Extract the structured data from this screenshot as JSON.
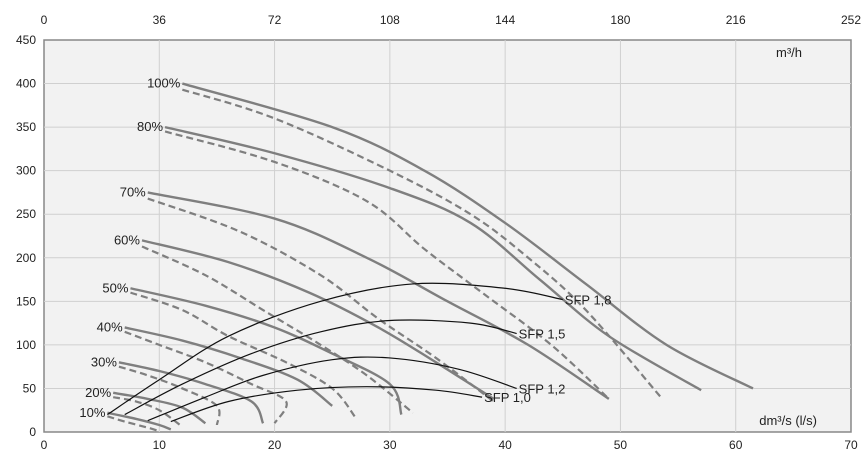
{
  "chart_data": {
    "type": "line",
    "title": "",
    "xlabel": "dm³/s (l/s)",
    "x2label": "m³/h",
    "ylabel": "",
    "xlim": [
      0,
      70
    ],
    "x2lim": [
      0,
      252
    ],
    "ylim": [
      0,
      450
    ],
    "x_ticks": [
      0,
      10,
      20,
      30,
      40,
      50,
      60,
      70
    ],
    "x2_ticks": [
      0,
      36,
      72,
      108,
      144,
      180,
      216,
      252
    ],
    "y_ticks": [
      0,
      50,
      100,
      150,
      200,
      250,
      300,
      350,
      400,
      450
    ],
    "grid": true,
    "speed_curves": [
      {
        "name": "100%",
        "solid": [
          [
            12,
            400
          ],
          [
            25,
            350
          ],
          [
            33,
            300
          ],
          [
            40,
            240
          ],
          [
            47,
            170
          ],
          [
            54,
            100
          ],
          [
            61.5,
            50
          ]
        ],
        "dashed": [
          [
            12,
            393
          ],
          [
            20,
            360
          ],
          [
            30,
            300
          ],
          [
            37,
            250
          ],
          [
            42,
            200
          ],
          [
            47,
            140
          ],
          [
            53.5,
            40
          ]
        ]
      },
      {
        "name": "80%",
        "solid": [
          [
            10.5,
            350
          ],
          [
            20,
            320
          ],
          [
            30,
            280
          ],
          [
            37,
            240
          ],
          [
            43,
            175
          ],
          [
            49,
            110
          ],
          [
            57,
            48
          ]
        ],
        "dashed": [
          [
            10.5,
            345
          ],
          [
            20,
            310
          ],
          [
            28,
            265
          ],
          [
            33,
            210
          ],
          [
            38,
            160
          ],
          [
            44,
            100
          ],
          [
            49,
            38
          ]
        ]
      },
      {
        "name": "70%",
        "solid": [
          [
            9,
            275
          ],
          [
            20,
            245
          ],
          [
            28,
            200
          ],
          [
            35,
            150
          ],
          [
            42,
            100
          ],
          [
            49,
            38
          ]
        ],
        "dashed": [
          [
            9,
            268
          ],
          [
            17,
            230
          ],
          [
            24,
            180
          ],
          [
            29,
            130
          ],
          [
            34,
            85
          ],
          [
            39,
            35
          ]
        ]
      },
      {
        "name": "60%",
        "solid": [
          [
            8.5,
            220
          ],
          [
            16,
            195
          ],
          [
            23,
            160
          ],
          [
            29,
            120
          ],
          [
            34,
            80
          ],
          [
            39,
            38
          ]
        ],
        "dashed": [
          [
            8.5,
            213
          ],
          [
            14,
            180
          ],
          [
            19,
            140
          ],
          [
            24,
            100
          ],
          [
            28,
            65
          ],
          [
            32,
            22
          ]
        ]
      },
      {
        "name": "50%",
        "solid": [
          [
            7.5,
            165
          ],
          [
            14,
            145
          ],
          [
            20,
            120
          ],
          [
            25,
            90
          ],
          [
            30,
            55
          ],
          [
            31,
            20
          ]
        ],
        "dashed": [
          [
            7.5,
            160
          ],
          [
            12,
            140
          ],
          [
            16,
            110
          ],
          [
            21,
            80
          ],
          [
            25,
            50
          ],
          [
            27,
            17
          ]
        ]
      },
      {
        "name": "40%",
        "solid": [
          [
            7,
            120
          ],
          [
            12,
            105
          ],
          [
            17,
            85
          ],
          [
            22,
            60
          ],
          [
            25,
            30
          ]
        ],
        "dashed": [
          [
            7,
            115
          ],
          [
            10,
            100
          ],
          [
            14,
            80
          ],
          [
            18,
            55
          ],
          [
            21,
            35
          ],
          [
            20,
            10
          ]
        ]
      },
      {
        "name": "30%",
        "solid": [
          [
            6.5,
            80
          ],
          [
            10,
            70
          ],
          [
            14,
            55
          ],
          [
            18,
            35
          ],
          [
            19,
            10
          ]
        ],
        "dashed": [
          [
            6.5,
            75
          ],
          [
            9,
            65
          ],
          [
            12,
            50
          ],
          [
            15,
            30
          ],
          [
            15,
            8
          ]
        ]
      },
      {
        "name": "20%",
        "solid": [
          [
            6,
            45
          ],
          [
            9,
            38
          ],
          [
            12,
            28
          ],
          [
            14,
            10
          ]
        ],
        "dashed": [
          [
            6,
            40
          ],
          [
            8,
            35
          ],
          [
            10,
            25
          ],
          [
            12,
            6
          ]
        ]
      },
      {
        "name": "10%",
        "solid": [
          [
            5.5,
            22
          ],
          [
            8,
            15
          ],
          [
            10,
            8
          ],
          [
            11,
            3
          ]
        ],
        "dashed": [
          [
            5.5,
            18
          ],
          [
            7,
            12
          ],
          [
            9,
            5
          ],
          [
            10,
            1
          ]
        ]
      }
    ],
    "sfp_curves": [
      {
        "name": "SFP 1,8",
        "values": [
          [
            5.5,
            20
          ],
          [
            10,
            60
          ],
          [
            16,
            110
          ],
          [
            24,
            150
          ],
          [
            32,
            170
          ],
          [
            40,
            165
          ],
          [
            45,
            152
          ]
        ]
      },
      {
        "name": "SFP 1,5",
        "values": [
          [
            7,
            20
          ],
          [
            12,
            55
          ],
          [
            18,
            90
          ],
          [
            24,
            115
          ],
          [
            30,
            128
          ],
          [
            37,
            125
          ],
          [
            41,
            113
          ]
        ]
      },
      {
        "name": "SFP 1,2",
        "values": [
          [
            9,
            13
          ],
          [
            14,
            40
          ],
          [
            19,
            65
          ],
          [
            25,
            83
          ],
          [
            30,
            85
          ],
          [
            36,
            72
          ],
          [
            41,
            50
          ]
        ]
      },
      {
        "name": "SFP 1,0",
        "values": [
          [
            11,
            12
          ],
          [
            16,
            35
          ],
          [
            22,
            48
          ],
          [
            28,
            52
          ],
          [
            34,
            48
          ],
          [
            38,
            40
          ]
        ]
      }
    ],
    "colors": {
      "plot_bg": "#f2f2f2",
      "grid": "#d0d0d0",
      "speed_line": "#7f7f7f",
      "sfp_line": "#111111",
      "axis": "#888888"
    }
  }
}
